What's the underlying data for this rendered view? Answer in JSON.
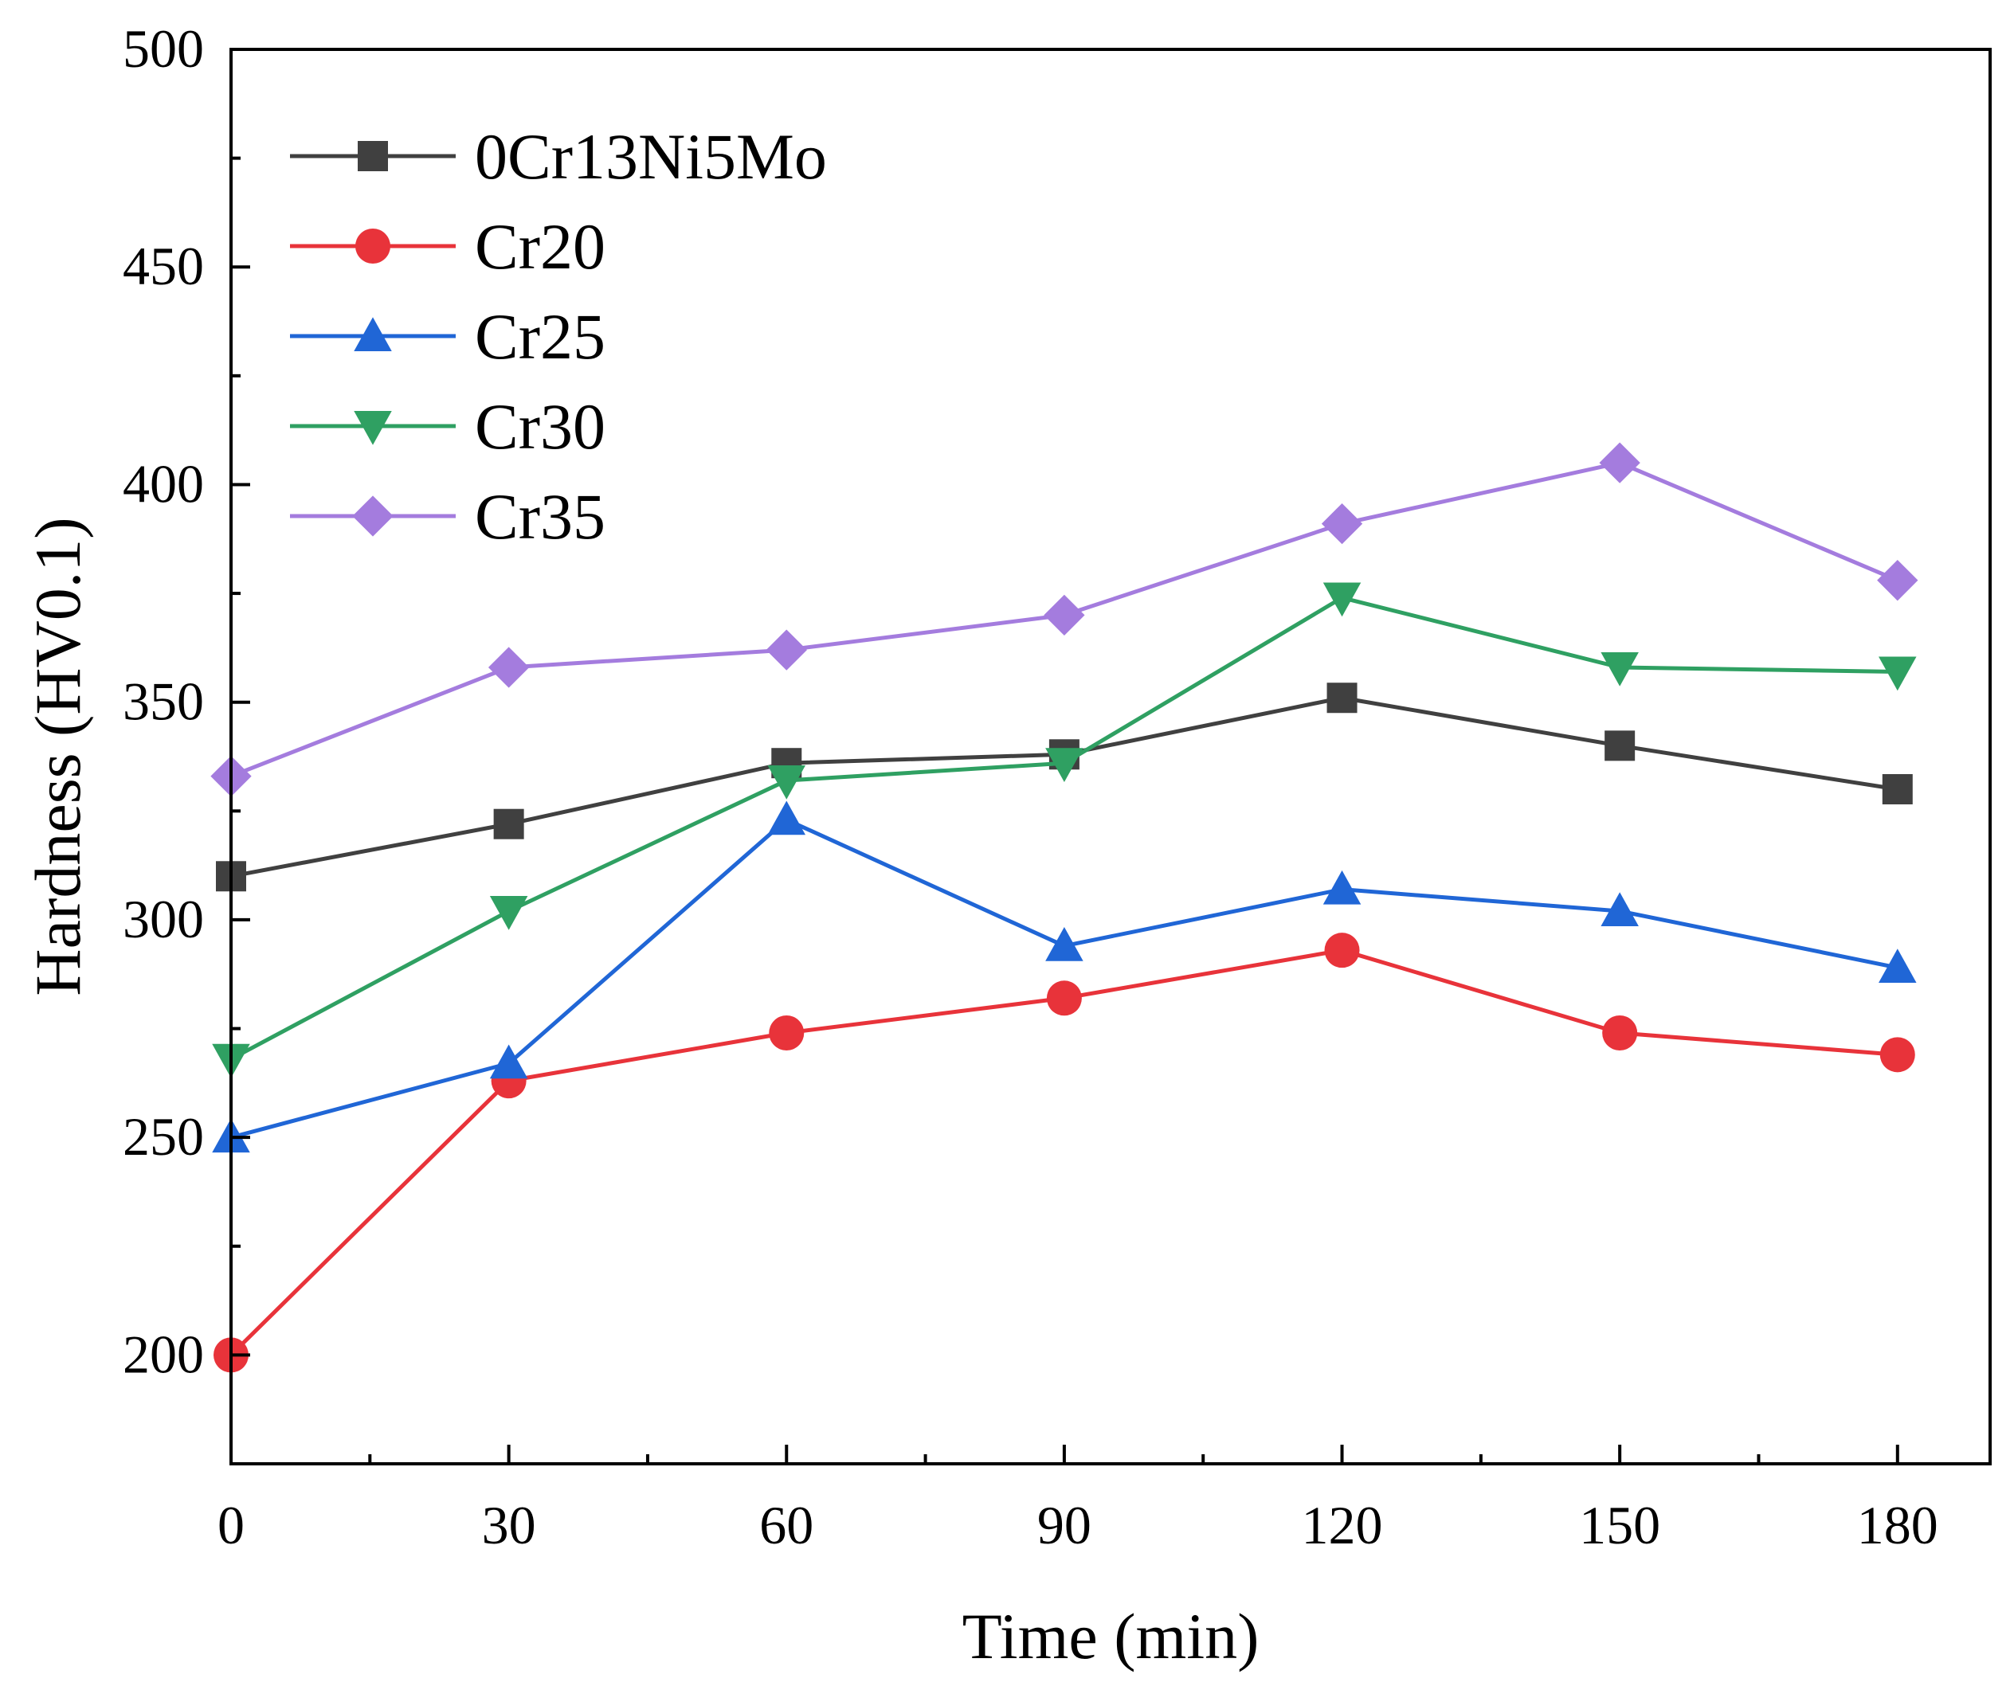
{
  "chart_data": {
    "type": "line",
    "title": "",
    "xlabel": "Time (min)",
    "ylabel": "Hardness (HV0.1)",
    "x": [
      0,
      30,
      60,
      90,
      120,
      150,
      180
    ],
    "xlim": [
      0,
      190
    ],
    "ylim": [
      175,
      500
    ],
    "xticks": [
      "0",
      "30",
      "60",
      "90",
      "120",
      "150",
      "180"
    ],
    "yticks": [
      "200",
      "250",
      "300",
      "350",
      "400",
      "450",
      "500"
    ],
    "legend_position": "top-left",
    "series": [
      {
        "name": "0Cr13Ni5Mo",
        "color": "#404040",
        "marker": "square",
        "values": [
          310,
          322,
          336,
          338,
          351,
          340,
          330
        ]
      },
      {
        "name": "Cr20",
        "color": "#e8333a",
        "marker": "circle",
        "values": [
          200,
          263,
          274,
          282,
          293,
          274,
          269
        ]
      },
      {
        "name": "Cr25",
        "color": "#2066d6",
        "marker": "triangle-up",
        "values": [
          250,
          267,
          323,
          294,
          307,
          302,
          289
        ]
      },
      {
        "name": "Cr30",
        "color": "#2fa062",
        "marker": "triangle-down",
        "values": [
          268,
          302,
          332,
          336,
          374,
          358,
          357
        ]
      },
      {
        "name": "Cr35",
        "color": "#a47cde",
        "marker": "diamond",
        "values": [
          333,
          358,
          362,
          370,
          391,
          405,
          378
        ]
      }
    ]
  }
}
